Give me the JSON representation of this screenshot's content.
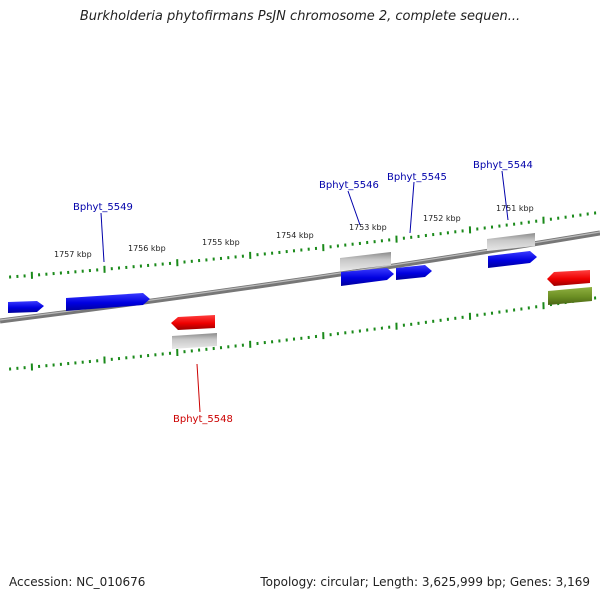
{
  "title": "Burkholderia phytofirmans PsJN chromosome 2, complete sequen...",
  "footer": {
    "accession": "Accession: NC_010676",
    "summary": "Topology: circular; Length: 3,625,999 bp; Genes: 3,169"
  },
  "colors": {
    "forward_gene": "#0000e8",
    "reverse_gene": "#ee0000",
    "gray_feature": "#aaaaaa",
    "olive_feature": "#6b8e23",
    "tick": "#1a8a1a",
    "backbone": "#808080",
    "forward_label": "#0000aa",
    "reverse_label": "#cc0000"
  },
  "kbp_labels": [
    "1757 kbp",
    "1756 kbp",
    "1755 kbp",
    "1754 kbp",
    "1753 kbp",
    "1752 kbp",
    "1751 kbp"
  ],
  "gene_labels": [
    {
      "text": "Bphyt_5549",
      "strand": "forward"
    },
    {
      "text": "Bphyt_5546",
      "strand": "forward"
    },
    {
      "text": "Bphyt_5545",
      "strand": "forward"
    },
    {
      "text": "Bphyt_5544",
      "strand": "forward"
    },
    {
      "text": "Bphyt_5548",
      "strand": "reverse"
    }
  ]
}
